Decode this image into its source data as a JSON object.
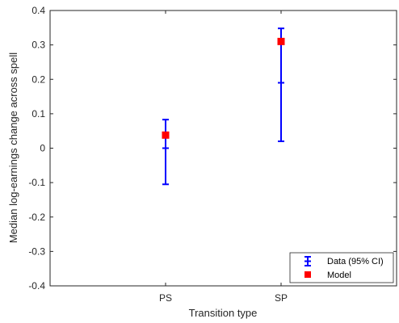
{
  "chart_data": {
    "type": "scatter",
    "xlabel": "Transition type",
    "ylabel": "Median log-earnings change across spell",
    "categories": [
      "PS",
      "SP"
    ],
    "ylim": [
      -0.4,
      0.4
    ],
    "yticks": [
      -0.4,
      -0.3,
      -0.2,
      -0.1,
      0,
      0.1,
      0.2,
      0.3,
      0.4
    ],
    "ytick_labels": [
      "-0.4",
      "-0.3",
      "-0.2",
      "-0.1",
      "0",
      "0.1",
      "0.2",
      "0.3",
      "0.4"
    ],
    "grid": false,
    "legend_position": "bottom-right",
    "series": [
      {
        "name": "Data (95% CI)",
        "kind": "errorbar",
        "color": "#0000ff",
        "points": [
          {
            "category": "PS",
            "value": 0.0,
            "lower": -0.105,
            "upper": 0.083
          },
          {
            "category": "SP",
            "value": 0.19,
            "lower": 0.02,
            "upper": 0.348
          }
        ]
      },
      {
        "name": "Model",
        "kind": "marker",
        "color": "#ff0000",
        "points": [
          {
            "category": "PS",
            "value": 0.038
          },
          {
            "category": "SP",
            "value": 0.31
          }
        ]
      }
    ]
  }
}
